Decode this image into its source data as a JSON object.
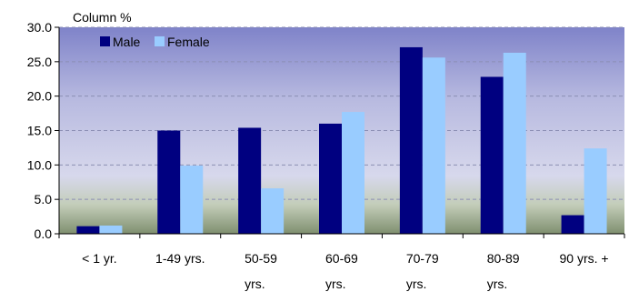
{
  "chart_data": {
    "type": "bar",
    "ylabel": "Column %",
    "ylim": [
      0,
      30
    ],
    "yticks": [
      "0.0",
      "5.0",
      "10.0",
      "15.0",
      "20.0",
      "25.0",
      "30.0"
    ],
    "categories": [
      [
        "< 1 yr."
      ],
      [
        "1-49 yrs."
      ],
      [
        "50-59",
        "yrs."
      ],
      [
        "60-69",
        "yrs."
      ],
      [
        "70-79",
        "yrs."
      ],
      [
        "80-89",
        "yrs."
      ],
      [
        "90 yrs. +"
      ]
    ],
    "series": [
      {
        "name": "Male",
        "color": "#000080",
        "values": [
          1.1,
          15.0,
          15.4,
          16.0,
          27.1,
          22.8,
          2.7
        ]
      },
      {
        "name": "Female",
        "color": "#99ccff",
        "values": [
          1.2,
          9.9,
          6.6,
          17.7,
          25.6,
          26.3,
          12.4
        ]
      }
    ],
    "grid": true,
    "legend_position": "top-left",
    "background": [
      "#7f83c9",
      "#b8bae0",
      "#d7d8ec",
      "#c3cdb9",
      "#7f8f6f"
    ]
  }
}
